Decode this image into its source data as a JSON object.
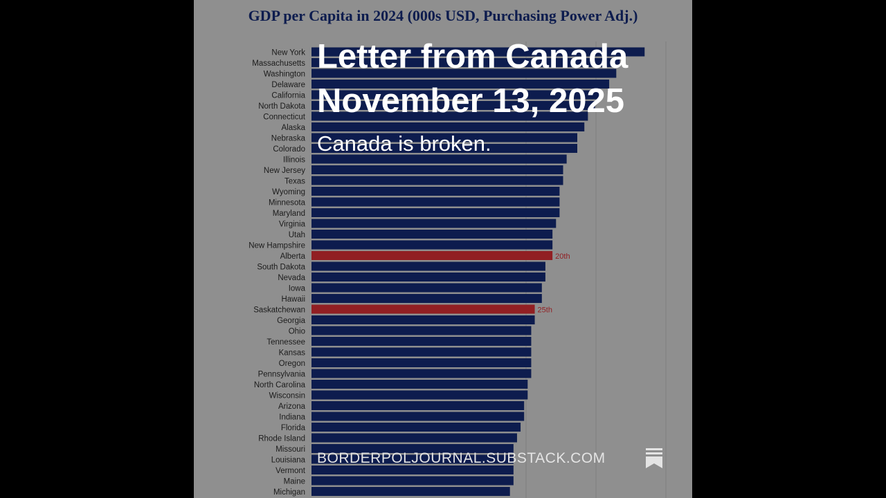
{
  "post": {
    "title_line1": "Letter from Canada",
    "title_line2": "November 13, 2025",
    "subtitle": "Canada is broken.",
    "publication": "BORDERPOLJOURNAL.SUBSTACK.COM",
    "bookmark_icon": "bookmark-icon"
  },
  "colors": {
    "background": "#9c9c9c",
    "bar": "#0f1f55",
    "highlight": "#9e2226",
    "title_text": "#0f1f55"
  },
  "chart_data": {
    "type": "bar",
    "orientation": "horizontal",
    "title": "GDP per Capita in 2024 (000s USD, Purchasing Power Adj.)",
    "categories": [
      "New York",
      "Massachusetts",
      "Washington",
      "Delaware",
      "California",
      "North Dakota",
      "Connecticut",
      "Alaska",
      "Nebraska",
      "Colorado",
      "Illinois",
      "New Jersey",
      "Texas",
      "Wyoming",
      "Minnesota",
      "Maryland",
      "Virginia",
      "Utah",
      "New Hampshire",
      "Alberta",
      "South Dakota",
      "Nevada",
      "Iowa",
      "Hawaii",
      "Saskatchewan",
      "Georgia",
      "Ohio",
      "Tennessee",
      "Kansas",
      "Oregon",
      "Pennsylvania",
      "North Carolina",
      "Wisconsin",
      "Arizona",
      "Indiana",
      "Florida",
      "Rhode Island",
      "Missouri",
      "Louisiana",
      "Vermont",
      "Maine",
      "Michigan"
    ],
    "values": [
      94,
      87,
      86,
      84,
      82,
      80,
      78,
      77,
      75,
      75,
      72,
      71,
      71,
      70,
      70,
      70,
      69,
      68,
      68,
      68,
      66,
      66,
      65,
      65,
      63,
      63,
      62,
      62,
      62,
      62,
      62,
      61,
      61,
      60,
      60,
      59,
      58,
      57,
      57,
      57,
      57,
      56
    ],
    "highlighted": [
      {
        "category": "Alberta",
        "label": "20th"
      },
      {
        "category": "Saskatchewan",
        "label": "25th"
      }
    ]
  }
}
